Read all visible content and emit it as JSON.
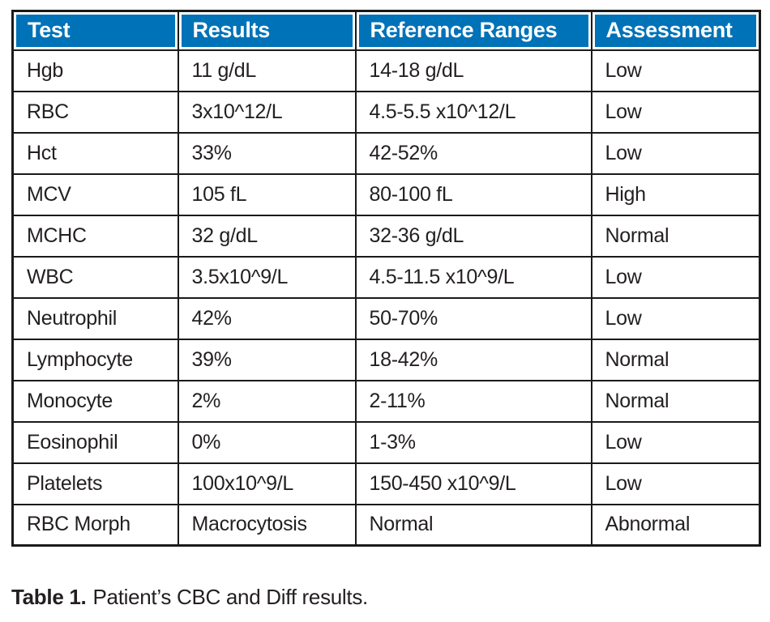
{
  "table": {
    "columns": [
      {
        "label": "Test"
      },
      {
        "label": "Results"
      },
      {
        "label": "Reference Ranges"
      },
      {
        "label": "Assessment"
      }
    ],
    "rows": [
      {
        "test": "Hgb",
        "result": "11 g/dL",
        "reference": "14-18 g/dL",
        "assessment": "Low"
      },
      {
        "test": "RBC",
        "result": "3x10^12/L",
        "reference": "4.5-5.5 x10^12/L",
        "assessment": "Low"
      },
      {
        "test": "Hct",
        "result": "33%",
        "reference": "42-52%",
        "assessment": "Low"
      },
      {
        "test": "MCV",
        "result": "105 fL",
        "reference": "80-100 fL",
        "assessment": "High"
      },
      {
        "test": "MCHC",
        "result": "32 g/dL",
        "reference": "32-36 g/dL",
        "assessment": "Normal"
      },
      {
        "test": "WBC",
        "result": "3.5x10^9/L",
        "reference": "4.5-11.5 x10^9/L",
        "assessment": "Low"
      },
      {
        "test": "Neutrophil",
        "result": "42%",
        "reference": "50-70%",
        "assessment": "Low"
      },
      {
        "test": "Lymphocyte",
        "result": "39%",
        "reference": "18-42%",
        "assessment": "Normal"
      },
      {
        "test": "Monocyte",
        "result": "2%",
        "reference": "2-11%",
        "assessment": "Normal"
      },
      {
        "test": "Eosinophil",
        "result": "0%",
        "reference": "1-3%",
        "assessment": "Low"
      },
      {
        "test": "Platelets",
        "result": "100x10^9/L",
        "reference": "150-450 x10^9/L",
        "assessment": "Low"
      },
      {
        "test": "RBC Morph",
        "result": "Macrocytosis",
        "reference": "Normal",
        "assessment": "Abnormal"
      }
    ]
  },
  "caption": {
    "label": "Table 1.",
    "text": "Patient’s CBC and Diff results."
  },
  "colors": {
    "header_bg": "#0072B8",
    "header_text": "#FFFFFF",
    "border": "#1A1A1A",
    "text": "#231F20"
  },
  "chart_data": {
    "type": "table",
    "title": "Table 1. Patient’s CBC and Diff results.",
    "columns": [
      "Test",
      "Results",
      "Reference Ranges",
      "Assessment"
    ],
    "rows": [
      [
        "Hgb",
        "11 g/dL",
        "14-18 g/dL",
        "Low"
      ],
      [
        "RBC",
        "3x10^12/L",
        "4.5-5.5 x10^12/L",
        "Low"
      ],
      [
        "Hct",
        "33%",
        "42-52%",
        "Low"
      ],
      [
        "MCV",
        "105 fL",
        "80-100 fL",
        "High"
      ],
      [
        "MCHC",
        "32 g/dL",
        "32-36 g/dL",
        "Normal"
      ],
      [
        "WBC",
        "3.5x10^9/L",
        "4.5-11.5 x10^9/L",
        "Low"
      ],
      [
        "Neutrophil",
        "42%",
        "50-70%",
        "Low"
      ],
      [
        "Lymphocyte",
        "39%",
        "18-42%",
        "Normal"
      ],
      [
        "Monocyte",
        "2%",
        "2-11%",
        "Normal"
      ],
      [
        "Eosinophil",
        "0%",
        "1-3%",
        "Low"
      ],
      [
        "Platelets",
        "100x10^9/L",
        "150-450 x10^9/L",
        "Low"
      ],
      [
        "RBC Morph",
        "Macrocytosis",
        "Normal",
        "Abnormal"
      ]
    ]
  }
}
